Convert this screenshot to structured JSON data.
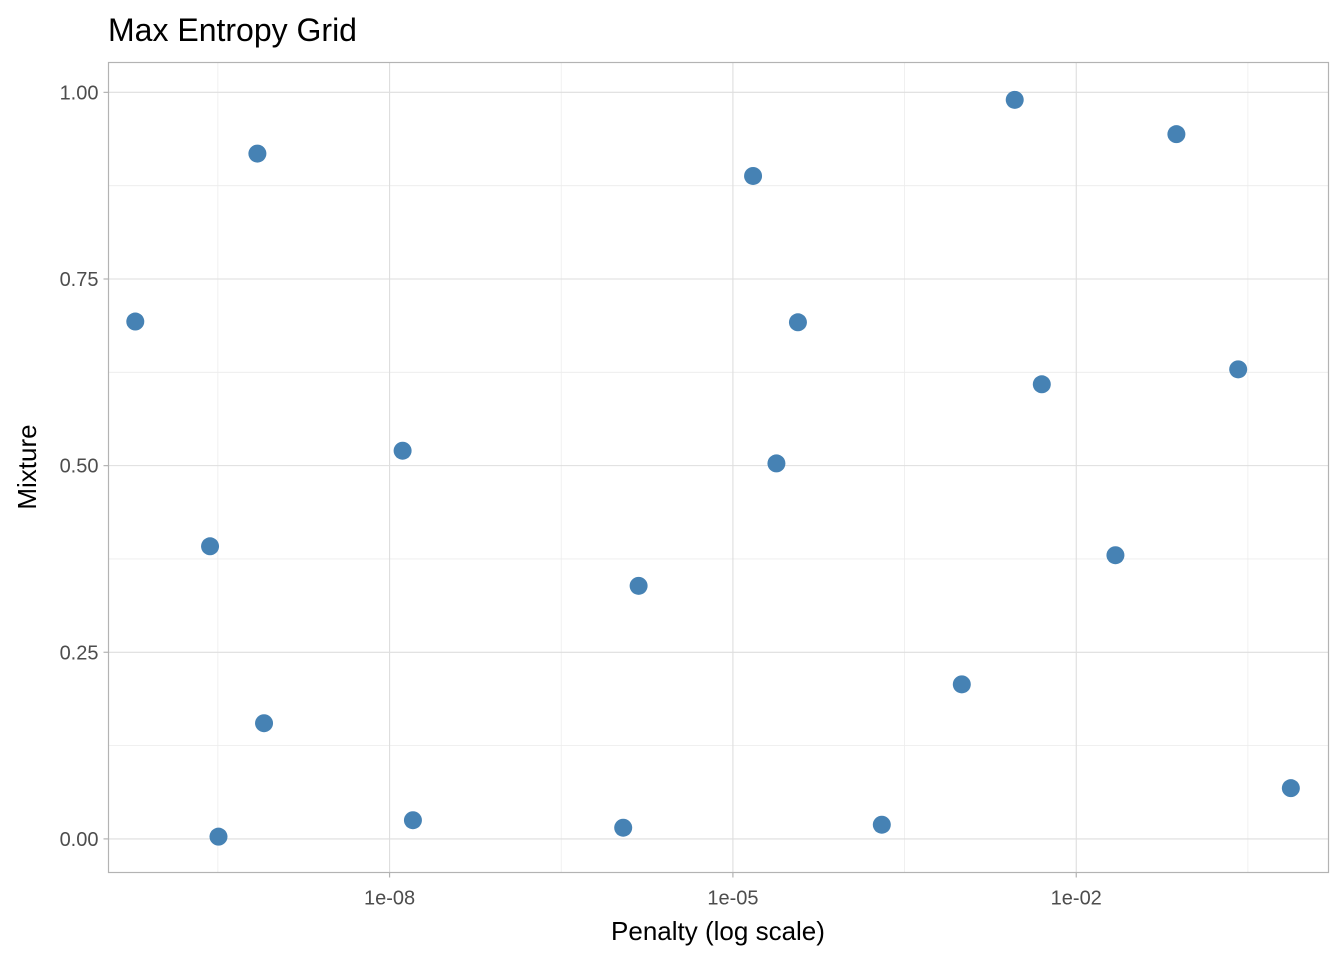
{
  "chart_data": {
    "type": "scatter",
    "title": "Max Entropy Grid",
    "xlabel": "Penalty (log scale)",
    "ylabel": "Mixture",
    "x_scale": "log10",
    "xlim": [
      3.5e-11,
      1.6
    ],
    "ylim": [
      -0.045,
      1.04
    ],
    "x_major_ticks": [
      1e-08,
      1e-05,
      0.01
    ],
    "x_tick_labels": [
      "1e-08",
      "1e-05",
      "1e-02"
    ],
    "x_minor_gridlines": [
      3.16e-10,
      3.16e-07,
      0.000316,
      0.316
    ],
    "y_ticks": [
      0,
      0.25,
      0.5,
      0.75,
      1
    ],
    "y_tick_labels": [
      "0.00",
      "0.25",
      "0.50",
      "0.75",
      "1.00"
    ],
    "grid": true,
    "point_color": "#4682b4",
    "points": [
      {
        "x": 6e-11,
        "y": 0.693
      },
      {
        "x": 2.7e-10,
        "y": 0.392
      },
      {
        "x": 3.2e-10,
        "y": 0.003
      },
      {
        "x": 7e-10,
        "y": 0.918
      },
      {
        "x": 8e-10,
        "y": 0.155
      },
      {
        "x": 1.3e-08,
        "y": 0.52
      },
      {
        "x": 1.6e-08,
        "y": 0.025
      },
      {
        "x": 1.1e-06,
        "y": 0.015
      },
      {
        "x": 1.5e-06,
        "y": 0.339
      },
      {
        "x": 1.5e-05,
        "y": 0.888
      },
      {
        "x": 2.4e-05,
        "y": 0.503
      },
      {
        "x": 3.7e-05,
        "y": 0.692
      },
      {
        "x": 0.0002,
        "y": 0.019
      },
      {
        "x": 0.001,
        "y": 0.207
      },
      {
        "x": 0.0029,
        "y": 0.99
      },
      {
        "x": 0.005,
        "y": 0.609
      },
      {
        "x": 0.022,
        "y": 0.38
      },
      {
        "x": 0.075,
        "y": 0.944
      },
      {
        "x": 0.26,
        "y": 0.629
      },
      {
        "x": 0.75,
        "y": 0.068
      }
    ]
  }
}
